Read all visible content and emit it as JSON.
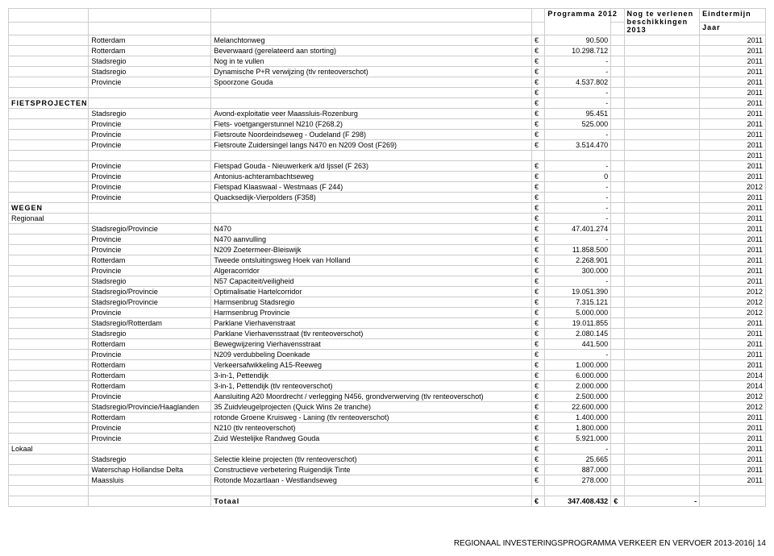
{
  "headers": {
    "programma": "Programma 2012",
    "nogte": "Nog te verlenen beschikkingen 2013",
    "eindtermijn": "Eindtermijn",
    "jaar": "Jaar"
  },
  "sections": {
    "fietsprojecten": "FIETSPROJECTEN",
    "wegen": "WEGEN",
    "regionaal": "Regionaal",
    "lokaal": "Lokaal",
    "totaal": "Totaal"
  },
  "rows": [
    {
      "a": "",
      "b": "Rotterdam",
      "c": "Melanchtonweg",
      "cur": "€",
      "val": "90.500",
      "jaar": "2011"
    },
    {
      "a": "",
      "b": "Rotterdam",
      "c": "Beverwaard (gerelateerd aan storting)",
      "cur": "€",
      "val": "10.298.712",
      "jaar": "2011"
    },
    {
      "a": "",
      "b": "Stadsregio",
      "c": "Nog in te vullen",
      "cur": "€",
      "val": "-",
      "jaar": "2011"
    },
    {
      "a": "",
      "b": "Stadsregio",
      "c": "Dynamische P+R verwijzing (tlv renteoverschot)",
      "cur": "€",
      "val": "-",
      "jaar": "2011"
    },
    {
      "a": "",
      "b": "Provincie",
      "c": "Spoorzone Gouda",
      "cur": "€",
      "val": "4.537.802",
      "jaar": "2011"
    },
    {
      "a": "",
      "b": "",
      "c": "",
      "cur": "€",
      "val": "-",
      "jaar": "2011"
    },
    {
      "a": "FIETSPROJECTEN",
      "b": "",
      "c": "",
      "cur": "€",
      "val": "-",
      "jaar": "2011",
      "bold": true,
      "ls": true
    },
    {
      "a": "",
      "b": "Stadsregio",
      "c": "Avond-exploitatie veer Maassluis-Rozenburg",
      "cur": "€",
      "val": "95.451",
      "jaar": "2011"
    },
    {
      "a": "",
      "b": "Provincie",
      "c": "Fiets- voetgangerstunnel N210 (F268.2)",
      "cur": "€",
      "val": "525.000",
      "jaar": "2011"
    },
    {
      "a": "",
      "b": "Provincie",
      "c": "Fietsroute Noordeindseweg - Oudeland (F 298)",
      "cur": "€",
      "val": "-",
      "jaar": "2011"
    },
    {
      "a": "",
      "b": "Provincie",
      "c": "Fietsroute Zuidersingel langs N470 en N209 Oost (F269)",
      "cur": "€",
      "val": "3.514.470",
      "jaar": "2011"
    },
    {
      "a": "",
      "b": "",
      "c": "",
      "cur": "",
      "val": "",
      "jaar": "2011"
    },
    {
      "a": "",
      "b": "Provincie",
      "c": "Fietspad Gouda - Nieuwerkerk a/d Ijssel (F 263)",
      "cur": "€",
      "val": "-",
      "jaar": "2011"
    },
    {
      "a": "",
      "b": "Provincie",
      "c": "Antonius-achterambachtseweg",
      "cur": "€",
      "val": "0",
      "jaar": "2011"
    },
    {
      "a": "",
      "b": "Provincie",
      "c": "Fietspad Klaaswaal - Westmaas (F 244)",
      "cur": "€",
      "val": "-",
      "jaar": "2012"
    },
    {
      "a": "",
      "b": "Provincie",
      "c": "Quacksedijk-Vierpolders (F358)",
      "cur": "€",
      "val": "-",
      "jaar": "2011"
    },
    {
      "a": "WEGEN",
      "b": "",
      "c": "",
      "cur": "€",
      "val": "-",
      "jaar": "2011",
      "bold": true,
      "ls": true
    },
    {
      "a": "Regionaal",
      "b": "",
      "c": "",
      "cur": "€",
      "val": "-",
      "jaar": "2011"
    },
    {
      "a": "",
      "b": "Stadsregio/Provincie",
      "c": "N470",
      "cur": "€",
      "val": "47.401.274",
      "jaar": "2011"
    },
    {
      "a": "",
      "b": "Provincie",
      "c": "N470 aanvulling",
      "cur": "€",
      "val": "-",
      "jaar": "2011"
    },
    {
      "a": "",
      "b": "Provincie",
      "c": "N209 Zoetermeer-Bleiswijk",
      "cur": "€",
      "val": "11.858.500",
      "jaar": "2011"
    },
    {
      "a": "",
      "b": "Rotterdam",
      "c": "Tweede ontsluitingsweg Hoek van Holland",
      "cur": "€",
      "val": "2.268.901",
      "jaar": "2011"
    },
    {
      "a": "",
      "b": "Provincie",
      "c": "Algeracorridor",
      "cur": "€",
      "val": "300.000",
      "jaar": "2011"
    },
    {
      "a": "",
      "b": "Stadsregio",
      "c": "N57 Capaciteit/veiligheid",
      "cur": "€",
      "val": "-",
      "jaar": "2011"
    },
    {
      "a": "",
      "b": "Stadsregio/Provincie",
      "c": "Optimalisatie Hartelcorridor",
      "cur": "€",
      "val": "19.051.390",
      "jaar": "2012"
    },
    {
      "a": "",
      "b": "Stadsregio/Provincie",
      "c": "Harmsenbrug Stadsregio",
      "cur": "€",
      "val": "7.315.121",
      "jaar": "2012"
    },
    {
      "a": "",
      "b": "Provincie",
      "c": "Harmsenbrug Provincie",
      "cur": "€",
      "val": "5.000.000",
      "jaar": "2012"
    },
    {
      "a": "",
      "b": "Stadsregio/Rotterdam",
      "c": "Parklane Vierhavenstraat",
      "cur": "€",
      "val": "19.011.855",
      "jaar": "2011"
    },
    {
      "a": "",
      "b": "Stadsregio",
      "c": "Parklane Vierhavensstraat (tlv renteoverschot)",
      "cur": "€",
      "val": "2.080.145",
      "jaar": "2011"
    },
    {
      "a": "",
      "b": "Rotterdam",
      "c": "Bewegwijzering Vierhavensstraat",
      "cur": "€",
      "val": "441.500",
      "jaar": "2011"
    },
    {
      "a": "",
      "b": "Provincie",
      "c": "N209 verdubbeling Doenkade",
      "cur": "€",
      "val": "-",
      "jaar": "2011"
    },
    {
      "a": "",
      "b": "Rotterdam",
      "c": "Verkeersafwikkeling A15-Reeweg",
      "cur": "€",
      "val": "1.000.000",
      "jaar": "2011"
    },
    {
      "a": "",
      "b": "Rotterdam",
      "c": "3-in-1, Pettendijk",
      "cur": "€",
      "val": "6.000.000",
      "jaar": "2014"
    },
    {
      "a": "",
      "b": "Rotterdam",
      "c": "3-in-1, Pettendijk (tlv renteoverschot)",
      "cur": "€",
      "val": "2.000.000",
      "jaar": "2014"
    },
    {
      "a": "",
      "b": "Provincie",
      "c": "Aansluiting A20 Moordrecht / verlegging N456, grondverwerving (tlv renteoverschot)",
      "cur": "€",
      "val": "2.500.000",
      "jaar": "2012"
    },
    {
      "a": "",
      "b": "Stadsregio/Provincie/Haaglanden",
      "c": "35 Zuidvleugelprojecten (Quick Wins 2e tranche)",
      "cur": "€",
      "val": "22.600.000",
      "jaar": "2012"
    },
    {
      "a": "",
      "b": "Rotterdam",
      "c": "rotonde Groene Kruisweg - Laning (tlv renteoverschot)",
      "cur": "€",
      "val": "1.400.000",
      "jaar": "2011"
    },
    {
      "a": "",
      "b": "Provincie",
      "c": "N210 (tlv renteoverschot)",
      "cur": "€",
      "val": "1.800.000",
      "jaar": "2011"
    },
    {
      "a": "",
      "b": "Provincie",
      "c": "Zuid Westelijke Randweg Gouda",
      "cur": "€",
      "val": "5.921.000",
      "jaar": "2011"
    },
    {
      "a": "Lokaal",
      "b": "",
      "c": "",
      "cur": "€",
      "val": "-",
      "jaar": "2011"
    },
    {
      "a": "",
      "b": "Stadsregio",
      "c": "Selectie kleine projecten (tlv renteoverschot)",
      "cur": "€",
      "val": "25.665",
      "jaar": "2011"
    },
    {
      "a": "",
      "b": "Waterschap Hollandse Delta",
      "c": "Constructieve verbetering Ruigendijk Tinte",
      "cur": "€",
      "val": "887.000",
      "jaar": "2011"
    },
    {
      "a": "",
      "b": "Maassluis",
      "c": "Rotonde Mozartlaan - Westlandseweg",
      "cur": "€",
      "val": "278.000",
      "jaar": "2011"
    }
  ],
  "total": {
    "cur": "€",
    "val": "347.408.432",
    "cur2": "€",
    "val2": "-"
  },
  "footer": "REGIONAAL INVESTERINGSPROGRAMMA VERKEER EN VERVOER 2013-2016| 14",
  "style": {
    "font_family": "Arial, Helvetica, sans-serif",
    "font_size_pt": 7,
    "border_color": "#cccccc",
    "text_color": "#000000",
    "background_color": "#ffffff"
  }
}
